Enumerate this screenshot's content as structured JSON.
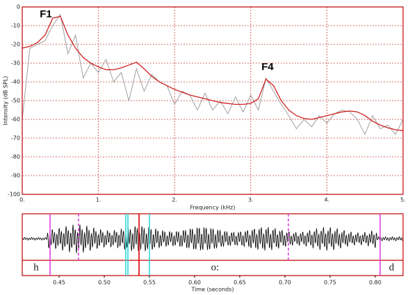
{
  "chart_data": [
    {
      "type": "line",
      "xlabel": "Frequency (kHz)",
      "ylabel": "Intensity (dB SPL)",
      "annotations": [
        "F1",
        "F4"
      ],
      "x": [
        0,
        0.1,
        0.2,
        0.3,
        0.4,
        0.5,
        0.6,
        0.7,
        0.8,
        0.9,
        1.0,
        1.1,
        1.2,
        1.3,
        1.4,
        1.5,
        1.6,
        1.7,
        1.8,
        1.9,
        2.0,
        2.1,
        2.2,
        2.3,
        2.4,
        2.5,
        2.6,
        2.7,
        2.8,
        2.9,
        3.0,
        3.1,
        3.2,
        3.3,
        3.4,
        3.5,
        3.6,
        3.7,
        3.8,
        3.9,
        4.0,
        4.1,
        4.2,
        4.3,
        4.4,
        4.5,
        4.6,
        4.7,
        4.8,
        4.9,
        5.0
      ],
      "series": [
        {
          "color": "#a0a0a0",
          "values": [
            -60,
            -22,
            -20,
            -18,
            -10,
            -4,
            -25,
            -15,
            -38,
            -30,
            -35,
            -28,
            -40,
            -35,
            -50,
            -33,
            -45,
            -36,
            -40,
            -42,
            -52,
            -45,
            -47,
            -55,
            -46,
            -55,
            -50,
            -57,
            -48,
            -56,
            -47,
            -55,
            -38,
            -45,
            -52,
            -58,
            -65,
            -60,
            -64,
            -58,
            -62,
            -57,
            -55,
            -56,
            -60,
            -68,
            -58,
            -65,
            -63,
            -68,
            -60
          ]
        },
        {
          "color": "#d02020",
          "values": [
            -22,
            -21,
            -19,
            -15,
            -6,
            -5,
            -15,
            -22,
            -27,
            -30,
            -32,
            -33.5,
            -33.5,
            -32.5,
            -31,
            -29.5,
            -33,
            -37,
            -40,
            -42,
            -44,
            -45.5,
            -47,
            -48,
            -49,
            -50,
            -51,
            -51.5,
            -52,
            -52,
            -51.5,
            -49,
            -38.5,
            -42,
            -50,
            -55,
            -58,
            -59.5,
            -60,
            -59,
            -58,
            -57,
            -56,
            -55.5,
            -56,
            -58,
            -61,
            -63,
            -64.5,
            -65.5,
            -66
          ]
        }
      ],
      "xlim": [
        0,
        5
      ],
      "xticks": [
        {
          "value": 0,
          "label": "0."
        },
        {
          "value": 1,
          "label": "1."
        },
        {
          "value": 2,
          "label": "2."
        },
        {
          "value": 3,
          "label": "3."
        },
        {
          "value": 4,
          "label": "4."
        },
        {
          "value": 5,
          "label": "5."
        }
      ],
      "ylim": [
        -100,
        0
      ],
      "yticks": [
        0,
        -10,
        -20,
        -30,
        -40,
        -50,
        -60,
        -70,
        -80,
        -90,
        -100
      ],
      "grid": true
    },
    {
      "type": "textgrid",
      "xlabel": "Time (seconds)",
      "xlim": [
        0.4092,
        0.8308
      ],
      "xticks": [
        0.45,
        {
          "value": 0.5,
          "label": "0.50"
        },
        0.55,
        {
          "value": 0.6,
          "label": "0.60"
        },
        0.65,
        {
          "value": 0.7,
          "label": "0.70"
        },
        0.75,
        {
          "value": 0.8,
          "label": "0.80"
        }
      ],
      "intervals": [
        "h",
        "o:",
        "d"
      ],
      "boundaries": [
        {
          "time": 0.44,
          "color": "#e040e0",
          "dashed": false
        },
        {
          "time": 0.4715,
          "color": "#e040e0",
          "dashed": true
        },
        {
          "time": 0.5238,
          "color": "#30d8d8",
          "dashed": false
        },
        {
          "time": 0.5262,
          "color": "#30d8d8",
          "dashed": false
        },
        {
          "time": 0.5385,
          "color": "#e00000",
          "dashed": false
        },
        {
          "time": 0.55,
          "color": "#30d8d8",
          "dashed": false
        },
        {
          "time": 0.7038,
          "color": "#e040e0",
          "dashed": true
        },
        {
          "time": 0.8054,
          "color": "#e040e0",
          "dashed": false
        }
      ]
    }
  ]
}
